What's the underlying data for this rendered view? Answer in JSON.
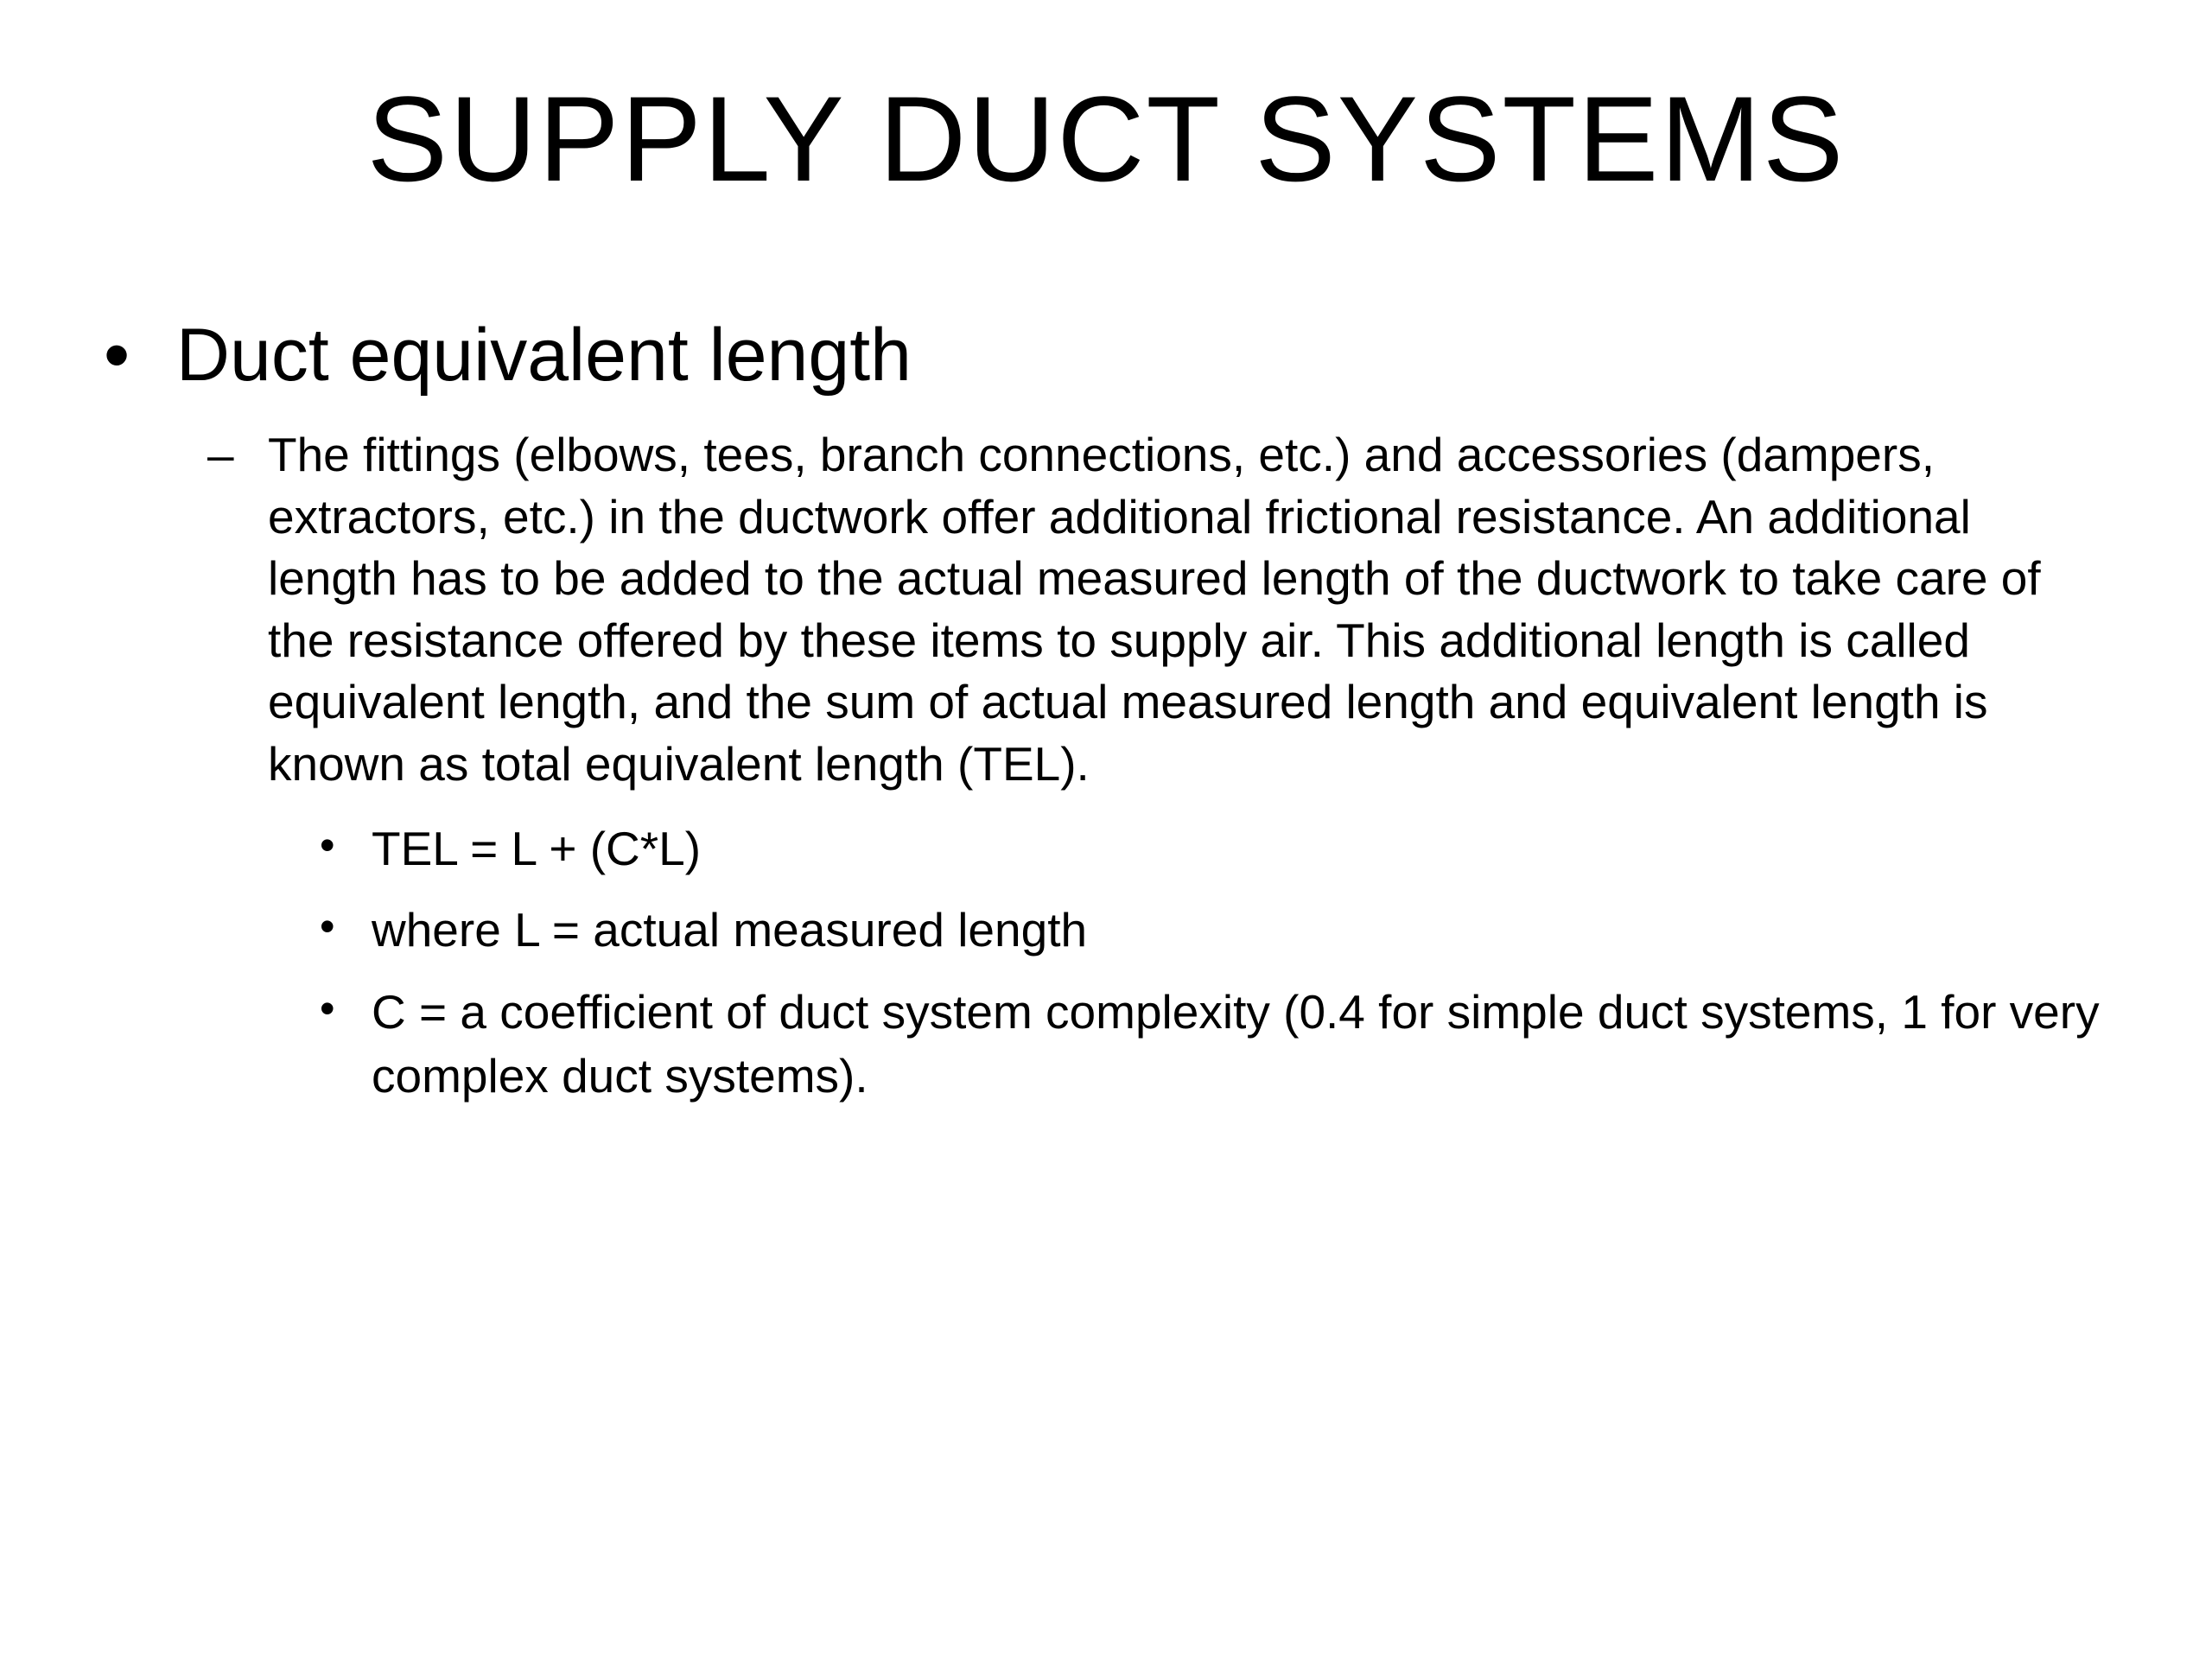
{
  "slide": {
    "title": "SUPPLY DUCT SYSTEMS",
    "bullet1": {
      "text": "Duct equivalent length",
      "sub1": {
        "text": "The fittings (elbows, tees, branch connections, etc.) and accessories (dampers, extractors, etc.) in the ductwork offer additional frictional resistance. An additional length has to be added to the actual measured length of the ductwork to take care of the resistance offered by these items to supply air. This additional length is called equivalent length, and the sum of actual measured length and equivalent length is known as total equivalent length (TEL).",
        "formula": "TEL = L + (C*L)",
        "where_l": "where L = actual measured length",
        "where_c": "C = a coefficient of duct system complexity (0.4 for simple duct systems, 1 for very complex duct systems)."
      }
    }
  },
  "colors": {
    "background": "#ffffff",
    "text": "#000000"
  },
  "typography": {
    "title_fontsize": 140,
    "level1_fontsize": 86,
    "level2_fontsize": 55,
    "level3_fontsize": 55,
    "font_family": "Arial"
  }
}
